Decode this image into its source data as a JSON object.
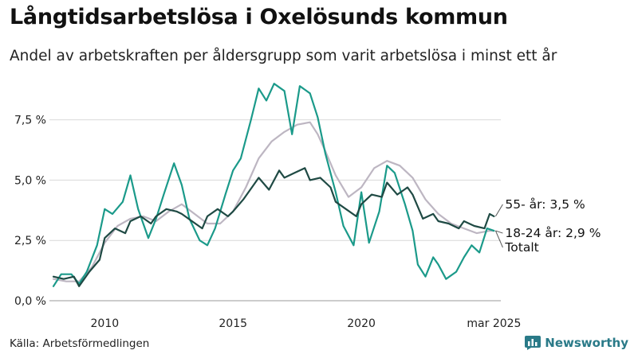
{
  "title": "Långtidsarbetslösa i Oxelösunds kommun",
  "subtitle": "Andel av arbetskraften per åldersgrupp som varit arbetslösa i minst ett år",
  "source": "Källa: Arbetsförmedlingen",
  "brand": "Newsworthy",
  "chart_data": {
    "type": "line",
    "xlim": [
      2008.0,
      2025.25
    ],
    "ylim": [
      0,
      9.5
    ],
    "y_ticks": [
      {
        "value": 0,
        "label": "0,0 %"
      },
      {
        "value": 2.5,
        "label": "2,5 %"
      },
      {
        "value": 5,
        "label": "5,0 %"
      },
      {
        "value": 7.5,
        "label": "7,5 %"
      }
    ],
    "x_ticks": [
      {
        "value": 2010,
        "label": "2010"
      },
      {
        "value": 2015,
        "label": "2015"
      },
      {
        "value": 2020,
        "label": "2020"
      },
      {
        "value": 2025.17,
        "label": "mar 2025"
      }
    ],
    "grid": "horizontal",
    "series": [
      {
        "name": "Totalt",
        "label": "Totalt",
        "color": "#bdb6c2",
        "x": [
          2008.0,
          2008.5,
          2009.0,
          2009.5,
          2010.0,
          2010.5,
          2011.0,
          2011.5,
          2012.0,
          2012.5,
          2013.0,
          2013.5,
          2014.0,
          2014.5,
          2015.0,
          2015.5,
          2016.0,
          2016.5,
          2017.0,
          2017.5,
          2018.0,
          2018.3,
          2018.6,
          2019.0,
          2019.5,
          2020.0,
          2020.5,
          2021.0,
          2021.5,
          2022.0,
          2022.5,
          2023.0,
          2023.5,
          2024.0,
          2024.5,
          2025.0,
          2025.17
        ],
        "values": [
          0.9,
          0.8,
          0.8,
          1.4,
          2.4,
          3.1,
          3.4,
          3.5,
          3.3,
          3.7,
          4.0,
          3.6,
          3.2,
          3.2,
          3.7,
          4.7,
          5.9,
          6.6,
          7.0,
          7.3,
          7.4,
          6.9,
          6.2,
          5.2,
          4.3,
          4.7,
          5.5,
          5.8,
          5.6,
          5.1,
          4.2,
          3.6,
          3.2,
          3.0,
          2.8,
          2.9,
          2.9
        ],
        "end_label": "Totalt"
      },
      {
        "name": "18-24 år",
        "label": "18-24 år: 2,9 %",
        "color": "#1b9a8a",
        "x": [
          2008.0,
          2008.3,
          2008.7,
          2009.0,
          2009.3,
          2009.7,
          2010.0,
          2010.3,
          2010.7,
          2011.0,
          2011.3,
          2011.7,
          2012.0,
          2012.3,
          2012.7,
          2013.0,
          2013.3,
          2013.7,
          2014.0,
          2014.3,
          2014.7,
          2015.0,
          2015.3,
          2015.7,
          2016.0,
          2016.3,
          2016.6,
          2017.0,
          2017.3,
          2017.6,
          2018.0,
          2018.3,
          2018.6,
          2019.0,
          2019.3,
          2019.7,
          2020.0,
          2020.3,
          2020.7,
          2021.0,
          2021.3,
          2021.7,
          2022.0,
          2022.2,
          2022.5,
          2022.8,
          2023.0,
          2023.3,
          2023.7,
          2024.0,
          2024.3,
          2024.6,
          2024.9,
          2025.17
        ],
        "values": [
          0.6,
          1.1,
          1.1,
          0.7,
          1.2,
          2.3,
          3.8,
          3.6,
          4.1,
          5.2,
          3.8,
          2.6,
          3.4,
          4.4,
          5.7,
          4.8,
          3.4,
          2.5,
          2.3,
          3.0,
          4.4,
          5.4,
          5.9,
          7.5,
          8.8,
          8.3,
          9.0,
          8.7,
          6.9,
          8.9,
          8.6,
          7.6,
          6.1,
          4.5,
          3.1,
          2.3,
          4.5,
          2.4,
          3.7,
          5.6,
          5.3,
          4.0,
          2.9,
          1.5,
          1.0,
          1.8,
          1.5,
          0.9,
          1.2,
          1.8,
          2.3,
          2.0,
          3.0,
          2.9
        ],
        "end_label": "18-24 år: 2,9 %"
      },
      {
        "name": "55- år",
        "label": "55- år: 3,5 %",
        "color": "#1f4a44",
        "x": [
          2008.0,
          2008.4,
          2008.8,
          2009.0,
          2009.4,
          2009.8,
          2010.0,
          2010.4,
          2010.8,
          2011.0,
          2011.4,
          2011.8,
          2012.0,
          2012.4,
          2012.8,
          2013.0,
          2013.4,
          2013.8,
          2014.0,
          2014.4,
          2014.8,
          2015.0,
          2015.4,
          2015.8,
          2016.0,
          2016.4,
          2016.8,
          2017.0,
          2017.4,
          2017.8,
          2018.0,
          2018.4,
          2018.8,
          2019.0,
          2019.4,
          2019.8,
          2020.0,
          2020.4,
          2020.8,
          2021.0,
          2021.4,
          2021.8,
          2022.0,
          2022.4,
          2022.8,
          2023.0,
          2023.4,
          2023.8,
          2024.0,
          2024.4,
          2024.8,
          2025.0,
          2025.17
        ],
        "values": [
          1.0,
          0.9,
          1.0,
          0.6,
          1.2,
          1.7,
          2.6,
          3.0,
          2.8,
          3.3,
          3.5,
          3.2,
          3.5,
          3.8,
          3.7,
          3.6,
          3.3,
          3.0,
          3.5,
          3.8,
          3.5,
          3.7,
          4.2,
          4.8,
          5.1,
          4.6,
          5.4,
          5.1,
          5.3,
          5.5,
          5.0,
          5.1,
          4.7,
          4.1,
          3.8,
          3.5,
          4.0,
          4.4,
          4.3,
          4.9,
          4.4,
          4.7,
          4.4,
          3.4,
          3.6,
          3.3,
          3.2,
          3.0,
          3.3,
          3.1,
          3.0,
          3.6,
          3.5
        ],
        "end_label": "55- år: 3,5 %"
      }
    ]
  }
}
